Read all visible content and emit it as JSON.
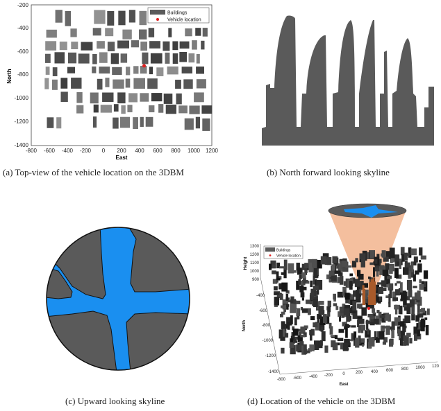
{
  "panels": {
    "a": {
      "caption": "(a) Top-view of the vehicle location on the 3DBM",
      "xlabel": "East",
      "ylabel": "North",
      "x_ticks": [
        "-800",
        "-600",
        "-400",
        "-200",
        "0",
        "200",
        "400",
        "600",
        "800",
        "1000",
        "1200"
      ],
      "y_ticks": [
        "-200",
        "-400",
        "-600",
        "-800",
        "-1000",
        "-1200",
        "-1400"
      ],
      "legend": {
        "buildings": "Buildings",
        "vehicle": "Vehicle location"
      },
      "vehicle": {
        "east": 450,
        "north": -720
      }
    },
    "b": {
      "caption": "(b) North forward looking skyline"
    },
    "c": {
      "caption": "(c) Upward looking skyline"
    },
    "d": {
      "caption": "(d) Location of the vehicle on the 3DBM",
      "zlabel": "Height",
      "ylabel": "North",
      "xlabel": "East",
      "z_ticks": [
        "1300",
        "1200",
        "1100",
        "1000",
        "900"
      ],
      "y_ticks": [
        "-400",
        "-600",
        "-800",
        "-1000",
        "-1200",
        "-1400"
      ],
      "x_ticks": [
        "-800",
        "-600",
        "-400",
        "-200",
        "0",
        "200",
        "400",
        "600",
        "800",
        "1000",
        "120"
      ],
      "legend": {
        "buildings": "Buildings",
        "vehicle": "Vehicle location"
      }
    }
  },
  "colors": {
    "building": "#5a5a5a",
    "sky": "#1a8ff0",
    "cone": "#f3b894",
    "vehicle": "#e02020"
  }
}
